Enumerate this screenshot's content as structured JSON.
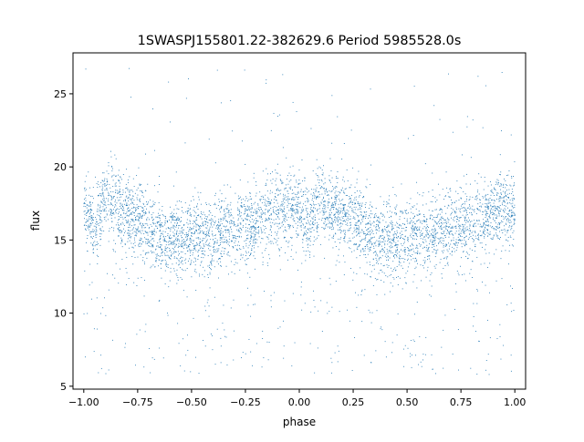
{
  "chart_data": {
    "type": "scatter",
    "title": "1SWASPJ155801.22-382629.6 Period 5985528.0s",
    "xlabel": "phase",
    "ylabel": "flux",
    "xlim": [
      -1.05,
      1.05
    ],
    "ylim": [
      4.8,
      27.8
    ],
    "xticks": [
      -1.0,
      -0.75,
      -0.5,
      -0.25,
      0.0,
      0.25,
      0.5,
      0.75,
      1.0
    ],
    "xtick_labels": [
      "−1.00",
      "−0.75",
      "−0.50",
      "−0.25",
      "0.00",
      "0.25",
      "0.50",
      "0.75",
      "1.00"
    ],
    "yticks": [
      5,
      10,
      15,
      20,
      25
    ],
    "ytick_labels": [
      "5",
      "10",
      "15",
      "20",
      "25"
    ],
    "grid": false,
    "legend": "none",
    "point_color": "#1f77b4",
    "phase_range": [
      -1.0,
      1.0
    ],
    "flux_envelope": {
      "phase": [
        0.0,
        0.05,
        0.08,
        0.1,
        0.15,
        0.2,
        0.25,
        0.3,
        0.35,
        0.4,
        0.45,
        0.5,
        0.55,
        0.6,
        0.65,
        0.7,
        0.75,
        0.8,
        0.85,
        0.9,
        0.95,
        1.0
      ],
      "median_flux": [
        17.0,
        16.0,
        17.5,
        18.0,
        17.3,
        16.9,
        16.5,
        15.6,
        15.2,
        15.0,
        15.2,
        15.0,
        15.5,
        15.2,
        15.8,
        16.0,
        16.1,
        16.4,
        16.6,
        17.0,
        17.3,
        17.1
      ]
    },
    "outlier_flux_range": [
      5.8,
      26.8
    ]
  }
}
